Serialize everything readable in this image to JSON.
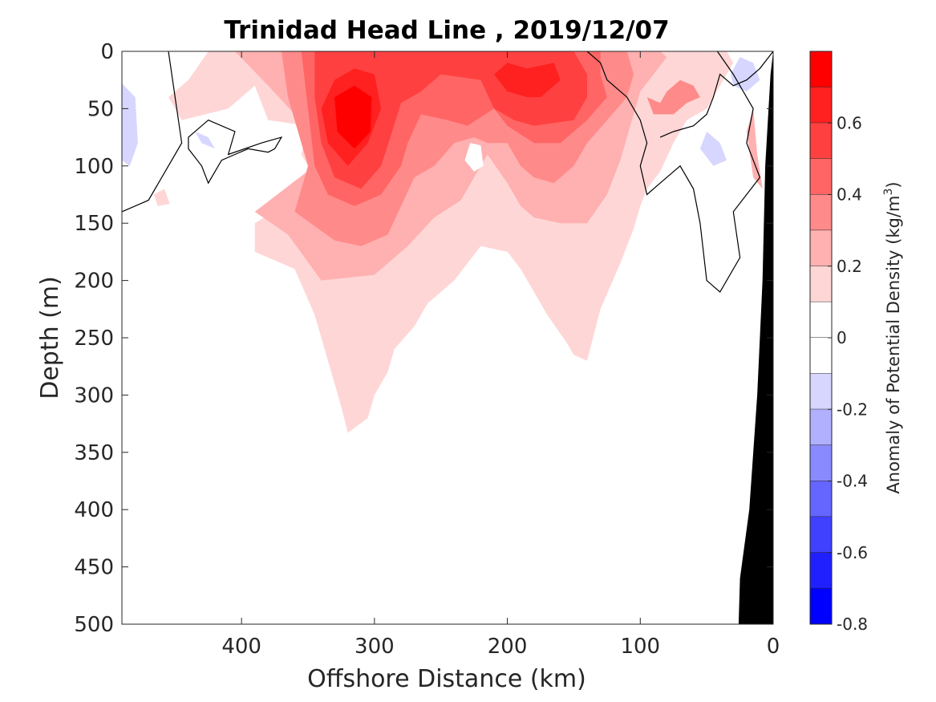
{
  "chart_data": {
    "type": "heatmap",
    "title": "Trinidad Head Line , 2019/12/07",
    "xlabel": "Offshore Distance (km)",
    "ylabel": "Depth (m)",
    "xlim": [
      490,
      0
    ],
    "ylim": [
      0,
      500
    ],
    "xticks": [
      400,
      300,
      200,
      100,
      0
    ],
    "yticks": [
      0,
      50,
      100,
      150,
      200,
      250,
      300,
      350,
      400,
      450,
      500
    ],
    "colorbar": {
      "label_main": "Anomaly of Potential Density (kg/m",
      "label_sup": "3",
      "label_end": ")",
      "range": [
        -0.8,
        0.8
      ],
      "ticks": [
        0.6,
        0.4,
        0.2,
        0,
        -0.2,
        -0.4,
        -0.6,
        -0.8
      ],
      "levels": [
        {
          "from": 0.7,
          "to": 0.8,
          "color": "#ff0000"
        },
        {
          "from": 0.6,
          "to": 0.7,
          "color": "#ff2020"
        },
        {
          "from": 0.5,
          "to": 0.6,
          "color": "#ff4040"
        },
        {
          "from": 0.4,
          "to": 0.5,
          "color": "#ff6565"
        },
        {
          "from": 0.3,
          "to": 0.4,
          "color": "#ff8a8a"
        },
        {
          "from": 0.2,
          "to": 0.3,
          "color": "#ffb0b0"
        },
        {
          "from": 0.1,
          "to": 0.2,
          "color": "#ffd6d6"
        },
        {
          "from": 0.0,
          "to": 0.1,
          "color": "#ffffff"
        },
        {
          "from": -0.1,
          "to": 0.0,
          "color": "#ffffff"
        },
        {
          "from": -0.2,
          "to": -0.1,
          "color": "#d6d6ff"
        },
        {
          "from": -0.3,
          "to": -0.2,
          "color": "#b0b0ff"
        },
        {
          "from": -0.4,
          "to": -0.3,
          "color": "#8a8aff"
        },
        {
          "from": -0.5,
          "to": -0.4,
          "color": "#6565ff"
        },
        {
          "from": -0.6,
          "to": -0.5,
          "color": "#4040ff"
        },
        {
          "from": -0.7,
          "to": -0.6,
          "color": "#2020ff"
        },
        {
          "from": -0.8,
          "to": -0.7,
          "color": "#0000ff"
        }
      ]
    },
    "regions": [
      {
        "level": 0.15,
        "color": "#ffd6d6",
        "points": [
          [
            425,
            0
          ],
          [
            440,
            25
          ],
          [
            455,
            40
          ],
          [
            445,
            60
          ],
          [
            410,
            50
          ],
          [
            390,
            30
          ],
          [
            380,
            60
          ],
          [
            350,
            65
          ],
          [
            355,
            90
          ],
          [
            345,
            110
          ],
          [
            355,
            125
          ],
          [
            390,
            150
          ],
          [
            390,
            175
          ],
          [
            360,
            190
          ],
          [
            345,
            230
          ],
          [
            335,
            270
          ],
          [
            325,
            310
          ],
          [
            320,
            333
          ],
          [
            305,
            320
          ],
          [
            300,
            300
          ],
          [
            290,
            280
          ],
          [
            285,
            260
          ],
          [
            270,
            240
          ],
          [
            260,
            220
          ],
          [
            240,
            200
          ],
          [
            220,
            170
          ],
          [
            200,
            175
          ],
          [
            190,
            190
          ],
          [
            170,
            230
          ],
          [
            155,
            255
          ],
          [
            150,
            265
          ],
          [
            140,
            270
          ],
          [
            130,
            225
          ],
          [
            115,
            185
          ],
          [
            105,
            155
          ],
          [
            100,
            135
          ],
          [
            95,
            120
          ],
          [
            85,
            105
          ],
          [
            75,
            80
          ],
          [
            65,
            60
          ],
          [
            50,
            50
          ],
          [
            40,
            30
          ],
          [
            30,
            10
          ],
          [
            35,
            0
          ]
        ]
      },
      {
        "level": 0.15,
        "color": "#ffd6d6",
        "points": [
          [
            458,
            120
          ],
          [
            466,
            125
          ],
          [
            463,
            135
          ],
          [
            454,
            133
          ]
        ]
      },
      {
        "level": 0.15,
        "color": "#ffd6d6",
        "points": [
          [
            452,
            40
          ],
          [
            440,
            38
          ],
          [
            435,
            50
          ],
          [
            445,
            55
          ]
        ]
      },
      {
        "level": 0.25,
        "color": "#ffb0b0",
        "points": [
          [
            405,
            0
          ],
          [
            380,
            30
          ],
          [
            360,
            55
          ],
          [
            345,
            60
          ],
          [
            340,
            80
          ],
          [
            345,
            100
          ],
          [
            390,
            140
          ],
          [
            365,
            160
          ],
          [
            340,
            200
          ],
          [
            300,
            195
          ],
          [
            290,
            185
          ],
          [
            275,
            170
          ],
          [
            255,
            145
          ],
          [
            235,
            130
          ],
          [
            225,
            110
          ],
          [
            215,
            90
          ],
          [
            200,
            115
          ],
          [
            190,
            135
          ],
          [
            180,
            145
          ],
          [
            160,
            150
          ],
          [
            140,
            150
          ],
          [
            125,
            125
          ],
          [
            115,
            95
          ],
          [
            110,
            75
          ],
          [
            105,
            55
          ],
          [
            100,
            35
          ],
          [
            90,
            20
          ],
          [
            80,
            5
          ],
          [
            85,
            0
          ]
        ]
      },
      {
        "level": 0.35,
        "color": "#ff8a8a",
        "points": [
          [
            370,
            0
          ],
          [
            365,
            40
          ],
          [
            360,
            60
          ],
          [
            350,
            100
          ],
          [
            360,
            140
          ],
          [
            330,
            165
          ],
          [
            310,
            170
          ],
          [
            290,
            160
          ],
          [
            280,
            135
          ],
          [
            270,
            110
          ],
          [
            255,
            100
          ],
          [
            240,
            80
          ],
          [
            225,
            75
          ],
          [
            215,
            80
          ],
          [
            200,
            80
          ],
          [
            190,
            100
          ],
          [
            180,
            110
          ],
          [
            165,
            115
          ],
          [
            150,
            100
          ],
          [
            140,
            80
          ],
          [
            125,
            60
          ],
          [
            110,
            40
          ],
          [
            105,
            20
          ],
          [
            110,
            0
          ]
        ]
      },
      {
        "level": 0.45,
        "color": "#ff6565",
        "points": [
          [
            355,
            0
          ],
          [
            350,
            50
          ],
          [
            345,
            100
          ],
          [
            335,
            125
          ],
          [
            315,
            135
          ],
          [
            295,
            125
          ],
          [
            280,
            100
          ],
          [
            275,
            80
          ],
          [
            265,
            55
          ],
          [
            245,
            60
          ],
          [
            230,
            65
          ],
          [
            210,
            50
          ],
          [
            200,
            65
          ],
          [
            180,
            80
          ],
          [
            160,
            80
          ],
          [
            140,
            60
          ],
          [
            125,
            40
          ],
          [
            130,
            20
          ],
          [
            130,
            0
          ]
        ]
      },
      {
        "level": 0.55,
        "color": "#ff4040",
        "points": [
          [
            345,
            0
          ],
          [
            345,
            40
          ],
          [
            340,
            80
          ],
          [
            330,
            110
          ],
          [
            310,
            120
          ],
          [
            295,
            100
          ],
          [
            288,
            75
          ],
          [
            280,
            45
          ],
          [
            265,
            35
          ],
          [
            250,
            20
          ],
          [
            220,
            25
          ],
          [
            210,
            50
          ],
          [
            195,
            60
          ],
          [
            180,
            65
          ],
          [
            150,
            60
          ],
          [
            140,
            40
          ],
          [
            140,
            20
          ],
          [
            150,
            0
          ]
        ]
      },
      {
        "level": 0.65,
        "color": "#ff2020",
        "points": [
          [
            330,
            25
          ],
          [
            340,
            50
          ],
          [
            335,
            80
          ],
          [
            320,
            100
          ],
          [
            305,
            80
          ],
          [
            295,
            50
          ],
          [
            300,
            20
          ],
          [
            315,
            15
          ]
        ]
      },
      {
        "level": 0.65,
        "color": "#ff2020",
        "points": [
          [
            210,
            20
          ],
          [
            200,
            35
          ],
          [
            185,
            40
          ],
          [
            175,
            40
          ],
          [
            160,
            25
          ],
          [
            165,
            10
          ],
          [
            185,
            15
          ],
          [
            200,
            10
          ]
        ]
      },
      {
        "level": 0.75,
        "color": "#ff0000",
        "points": [
          [
            330,
            40
          ],
          [
            328,
            70
          ],
          [
            315,
            85
          ],
          [
            303,
            70
          ],
          [
            302,
            40
          ],
          [
            315,
            30
          ]
        ]
      },
      {
        "level": 0.05,
        "color": "#ffffff",
        "points": [
          [
            228,
            80
          ],
          [
            220,
            82
          ],
          [
            218,
            100
          ],
          [
            225,
            105
          ],
          [
            232,
            95
          ]
        ]
      },
      {
        "level": 0.35,
        "color": "#ff8a8a",
        "points": [
          [
            95,
            40
          ],
          [
            85,
            45
          ],
          [
            80,
            35
          ],
          [
            70,
            25
          ],
          [
            60,
            30
          ],
          [
            55,
            40
          ],
          [
            65,
            45
          ],
          [
            75,
            55
          ],
          [
            90,
            55
          ]
        ]
      },
      {
        "level": 0.25,
        "color": "#ffb0b0",
        "points": [
          [
            15,
            50
          ],
          [
            20,
            70
          ],
          [
            15,
            110
          ],
          [
            8,
            120
          ],
          [
            12,
            90
          ]
        ]
      },
      {
        "level": -0.15,
        "color": "#d6d6ff",
        "points": [
          [
            490,
            28
          ],
          [
            480,
            40
          ],
          [
            478,
            80
          ],
          [
            484,
            100
          ],
          [
            490,
            95
          ]
        ]
      },
      {
        "level": -0.15,
        "color": "#d6d6ff",
        "points": [
          [
            435,
            70
          ],
          [
            425,
            75
          ],
          [
            420,
            85
          ],
          [
            430,
            80
          ]
        ]
      },
      {
        "level": -0.15,
        "color": "#d6d6ff",
        "points": [
          [
            50,
            70
          ],
          [
            55,
            85
          ],
          [
            45,
            100
          ],
          [
            35,
            95
          ],
          [
            40,
            80
          ]
        ]
      },
      {
        "level": -0.15,
        "color": "#d6d6ff",
        "points": [
          [
            25,
            5
          ],
          [
            15,
            10
          ],
          [
            10,
            25
          ],
          [
            20,
            35
          ],
          [
            30,
            30
          ],
          [
            32,
            20
          ]
        ]
      }
    ],
    "contours_zero": [
      {
        "closed": false,
        "points": [
          [
            455,
            0
          ],
          [
            450,
            40
          ],
          [
            445,
            80
          ],
          [
            460,
            110
          ],
          [
            470,
            130
          ],
          [
            490,
            140
          ]
        ]
      },
      {
        "closed": true,
        "points": [
          [
            440,
            75
          ],
          [
            425,
            60
          ],
          [
            405,
            70
          ],
          [
            410,
            90
          ],
          [
            385,
            80
          ],
          [
            370,
            75
          ],
          [
            375,
            85
          ],
          [
            380,
            88
          ],
          [
            395,
            85
          ],
          [
            405,
            90
          ],
          [
            415,
            95
          ],
          [
            425,
            115
          ],
          [
            430,
            100
          ],
          [
            440,
            85
          ]
        ]
      },
      {
        "closed": false,
        "points": [
          [
            42,
            0
          ],
          [
            30,
            20
          ],
          [
            15,
            50
          ],
          [
            20,
            80
          ],
          [
            10,
            110
          ],
          [
            30,
            140
          ],
          [
            25,
            180
          ],
          [
            40,
            210
          ],
          [
            50,
            200
          ],
          [
            55,
            150
          ],
          [
            60,
            120
          ],
          [
            70,
            100
          ],
          [
            85,
            115
          ],
          [
            95,
            125
          ],
          [
            100,
            100
          ],
          [
            95,
            80
          ],
          [
            100,
            60
          ],
          [
            110,
            40
          ],
          [
            125,
            25
          ],
          [
            130,
            10
          ],
          [
            140,
            0
          ]
        ]
      },
      {
        "closed": false,
        "points": [
          [
            0,
            0
          ],
          [
            10,
            15
          ],
          [
            20,
            25
          ],
          [
            30,
            30
          ],
          [
            40,
            20
          ],
          [
            45,
            40
          ],
          [
            50,
            55
          ],
          [
            60,
            65
          ],
          [
            75,
            70
          ],
          [
            85,
            75
          ]
        ]
      }
    ],
    "bathymetry": {
      "color": "#000000",
      "points": [
        [
          0,
          0
        ],
        [
          0,
          500
        ],
        [
          26,
          500
        ],
        [
          25,
          460
        ],
        [
          18,
          400
        ],
        [
          12,
          300
        ],
        [
          8,
          200
        ],
        [
          6,
          100
        ],
        [
          2,
          20
        ]
      ]
    }
  }
}
